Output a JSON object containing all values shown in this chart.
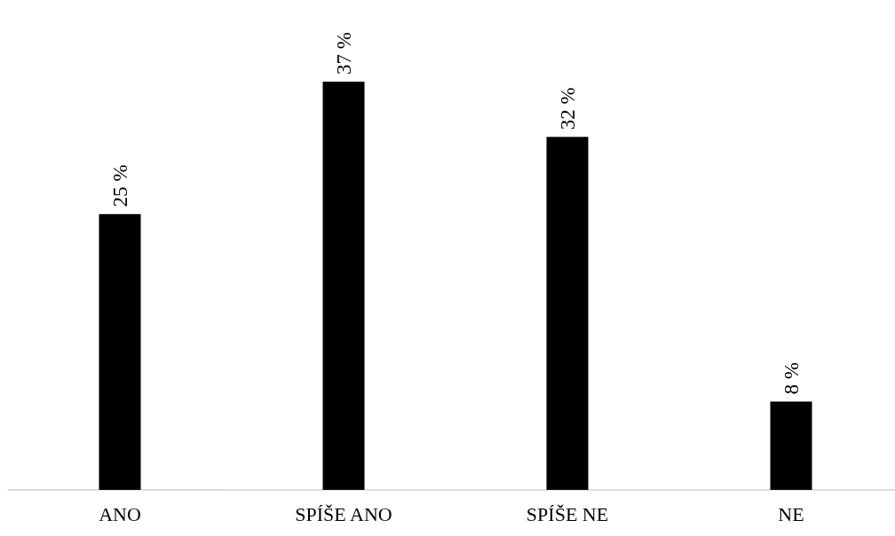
{
  "chart_data": {
    "type": "bar",
    "categories": [
      "ANO",
      "SPÍŠE ANO",
      "SPÍŠE NE",
      "NE"
    ],
    "values": [
      25,
      37,
      32,
      8
    ],
    "value_labels": [
      "25 %",
      "37 %",
      "32 %",
      "8 %"
    ],
    "color": "#000000"
  }
}
